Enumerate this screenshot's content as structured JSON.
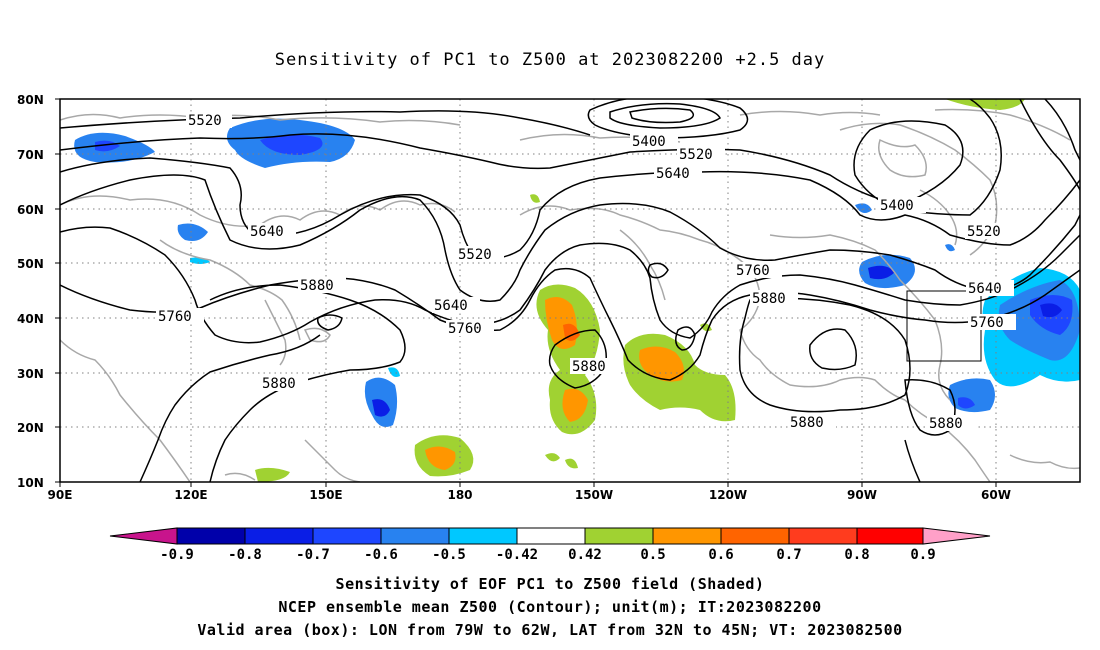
{
  "title": "Sensitivity of PC1 to Z500 at 2023082200 +2.5 day",
  "lat_labels": [
    "80N",
    "70N",
    "60N",
    "50N",
    "40N",
    "30N",
    "20N",
    "10N"
  ],
  "lon_labels": [
    "90E",
    "120E",
    "150E",
    "180",
    "150W",
    "120W",
    "90W",
    "60W"
  ],
  "contour_labels": {
    "c1": "5520",
    "c2": "5400",
    "c3": "5520",
    "c4": "5640",
    "c5": "5640",
    "c6": "5520",
    "c7": "5880",
    "c8": "5760",
    "c9": "5640",
    "c10": "5760",
    "c11": "5760",
    "c12": "5880",
    "c13": "5880",
    "c14": "5400",
    "c15": "5520",
    "c16": "5640",
    "c17": "5760",
    "c18": "5880",
    "c19": "5880"
  },
  "colorbar": {
    "labels": [
      "-0.9",
      "-0.8",
      "-0.7",
      "-0.6",
      "-0.5",
      "-0.42",
      "0.42",
      "0.5",
      "0.6",
      "0.7",
      "0.8",
      "0.9"
    ],
    "colors": {
      "below": "#c8148c",
      "c1": "#0000aa",
      "c2": "#0a1ee6",
      "c3": "#1e46ff",
      "c4": "#2882f0",
      "c5": "#00c8ff",
      "neutral": "#ffffff",
      "c6": "#a0d232",
      "c7": "#ff9600",
      "c8": "#ff6400",
      "c9": "#ff3c1e",
      "c10": "#ff0000",
      "above": "#ffa0c8"
    }
  },
  "captions": {
    "line1": "Sensitivity of EOF PC1 to Z500 field (Shaded)",
    "line2": "NCEP ensemble mean Z500 (Contour); unit(m); IT:2023082200",
    "line3": "Valid area (box): LON from 79W to 62W, LAT from 32N to 45N; VT: 2023082500"
  }
}
